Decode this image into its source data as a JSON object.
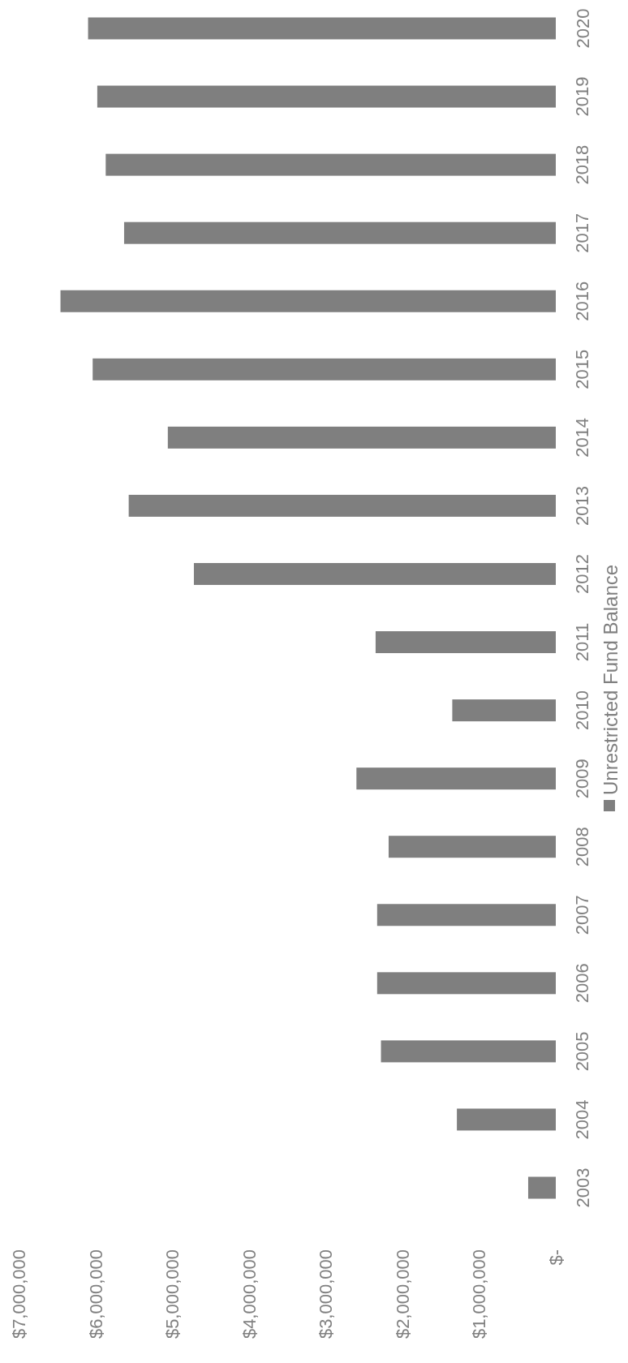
{
  "chart_data": {
    "type": "bar",
    "orientation": "horizontal",
    "categories": [
      "2020",
      "2019",
      "2018",
      "2017",
      "2016",
      "2015",
      "2014",
      "2013",
      "2012",
      "2011",
      "2010",
      "2009",
      "2008",
      "2007",
      "2006",
      "2005",
      "2004",
      "2003"
    ],
    "series": [
      {
        "name": "Unrestricted Fund Balance",
        "color": "#7f7f7f",
        "values": [
          6100000,
          5980000,
          5870000,
          5630000,
          6460000,
          6040000,
          5060000,
          5570000,
          4720000,
          2350000,
          1350000,
          2600000,
          2180000,
          2330000,
          2330000,
          2280000,
          1290000,
          360000
        ]
      }
    ],
    "xlim": [
      7000000,
      0
    ],
    "xticks": [
      {
        "value": 7000000,
        "label": "$7,000,000"
      },
      {
        "value": 6000000,
        "label": "$6,000,000"
      },
      {
        "value": 5000000,
        "label": "$5,000,000"
      },
      {
        "value": 4000000,
        "label": "$4,000,000"
      },
      {
        "value": 3000000,
        "label": "$3,000,000"
      },
      {
        "value": 2000000,
        "label": "$2,000,000"
      },
      {
        "value": 1000000,
        "label": "$1,000,000"
      },
      {
        "value": 0,
        "label": "$-"
      }
    ],
    "grid": false,
    "legend": "right"
  }
}
